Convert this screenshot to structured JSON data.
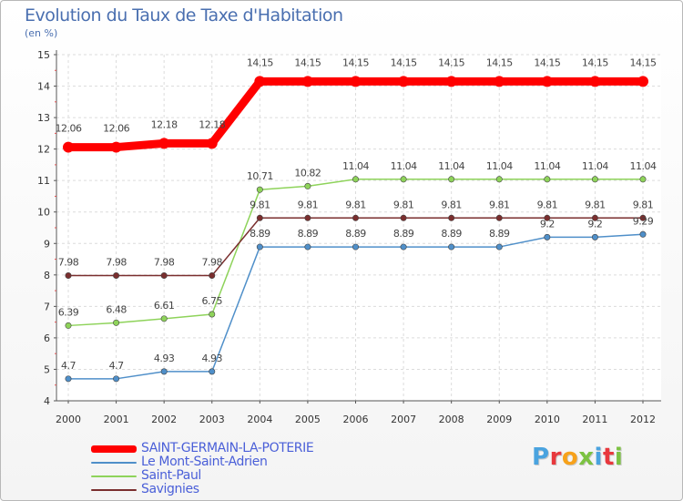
{
  "title": "Evolution du Taux de Taxe d'Habitation",
  "subtitle": "(en %)",
  "logo": {
    "text": "Proxiti",
    "colors": [
      "#4aa3df",
      "#e8383d",
      "#f7a21b",
      "#7cc242",
      "#4aa3df",
      "#e8383d",
      "#7cc242"
    ]
  },
  "chart_data": {
    "type": "line",
    "title": "Evolution du Taux de Taxe d'Habitation",
    "ylabel": "(en %)",
    "xlabel": "",
    "ylim": [
      4,
      15
    ],
    "yticks": [
      4,
      5,
      6,
      7,
      8,
      9,
      10,
      11,
      12,
      13,
      14,
      15
    ],
    "grid": true,
    "x": [
      "2000",
      "2001",
      "2002",
      "2003",
      "2004",
      "2005",
      "2006",
      "2007",
      "2008",
      "2009",
      "2010",
      "2011",
      "2012"
    ],
    "series": [
      {
        "name": "SAINT-GERMAIN-LA-POTERIE",
        "color": "#ff0000",
        "values": [
          12.06,
          12.06,
          12.18,
          12.18,
          14.15,
          14.15,
          14.15,
          14.15,
          14.15,
          14.15,
          14.15,
          14.15,
          14.15
        ],
        "labels": [
          "12.06",
          "12.06",
          "12.18",
          "12.18",
          "14.15",
          "14.15",
          "14.15",
          "14.15",
          "14.15",
          "14.15",
          "14.15",
          "14.15",
          "14.15"
        ]
      },
      {
        "name": "Le Mont-Saint-Adrien",
        "color": "#4f8fc9",
        "values": [
          4.7,
          4.7,
          4.93,
          4.93,
          8.89,
          8.89,
          8.89,
          8.89,
          8.89,
          8.89,
          9.2,
          9.2,
          9.29
        ],
        "labels": [
          "4.7",
          "4.7",
          "4.93",
          "4.93",
          "8.89",
          "8.89",
          "8.89",
          "8.89",
          "8.89",
          "8.89",
          "9.2",
          "9.2",
          "9.29"
        ]
      },
      {
        "name": "Saint-Paul",
        "color": "#8ed35a",
        "values": [
          6.39,
          6.48,
          6.61,
          6.75,
          10.71,
          10.82,
          11.04,
          11.04,
          11.04,
          11.04,
          11.04,
          11.04,
          11.04
        ],
        "labels": [
          "6.39",
          "6.48",
          "6.61",
          "6.75",
          "10.71",
          "10.82",
          "11.04",
          "11.04",
          "11.04",
          "11.04",
          "11.04",
          "11.04",
          "11.04"
        ]
      },
      {
        "name": "Savignies",
        "color": "#7a2e2e",
        "values": [
          7.98,
          7.98,
          7.98,
          7.98,
          9.81,
          9.81,
          9.81,
          9.81,
          9.81,
          9.81,
          9.81,
          9.81,
          9.81
        ],
        "labels": [
          "7.98",
          "7.98",
          "7.98",
          "7.98",
          "9.81",
          "9.81",
          "9.81",
          "9.81",
          "9.81",
          "9.81",
          "9.81",
          "9.81",
          "9.81"
        ]
      }
    ]
  }
}
